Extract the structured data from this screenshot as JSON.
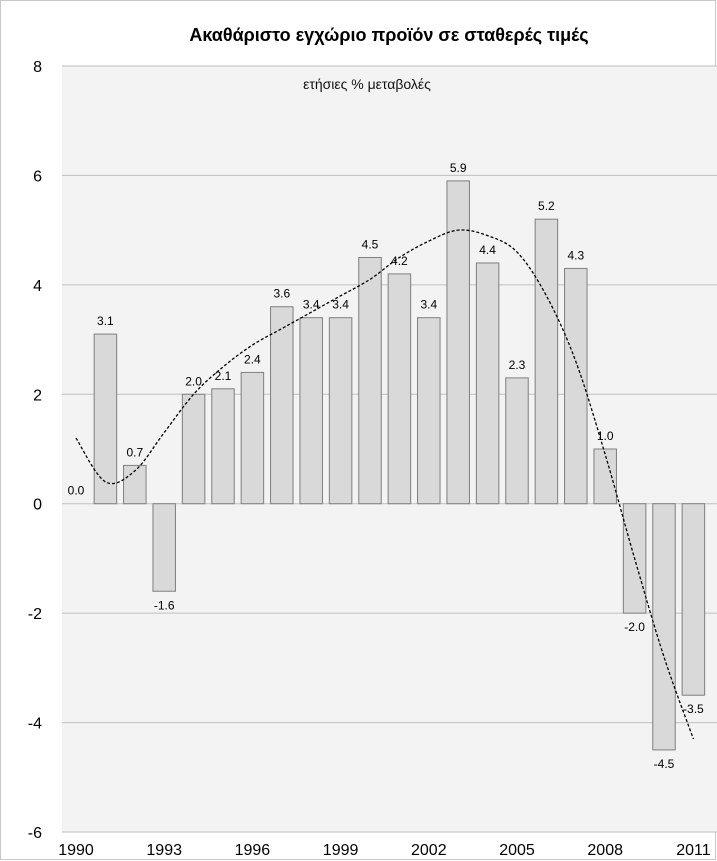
{
  "chart_data": {
    "type": "bar",
    "title": "Ακαθάριστο εγχώριο προϊόν σε σταθερές τιμές",
    "subtitle": "ετήσιες % μεταβολές",
    "x": [
      1990,
      1991,
      1992,
      1993,
      1994,
      1995,
      1996,
      1997,
      1998,
      1999,
      2000,
      2001,
      2002,
      2003,
      2004,
      2005,
      2006,
      2007,
      2008,
      2009,
      2010,
      2011
    ],
    "values": [
      0.0,
      3.1,
      0.7,
      -1.6,
      2.0,
      2.1,
      2.4,
      3.6,
      3.4,
      3.4,
      4.5,
      4.2,
      3.4,
      5.9,
      4.4,
      2.3,
      5.2,
      4.3,
      1.0,
      -2.0,
      -4.5,
      -3.5
    ],
    "data_labels": [
      "0.0",
      "3.1",
      "0.7",
      "-1.6",
      "2.0",
      "2.1",
      "2.4",
      "3.6",
      "3.4",
      "3.4",
      "4.5",
      "4.2",
      "3.4",
      "5.9",
      "4.4",
      "2.3",
      "5.2",
      "4.3",
      "1.0",
      "-2.0",
      "-4.5",
      "-3.5"
    ],
    "x_tick_labels": [
      "1990",
      "1993",
      "1996",
      "1999",
      "2002",
      "2005",
      "2008",
      "2011"
    ],
    "y_tick_labels": [
      "8",
      "6",
      "4",
      "2",
      "0",
      "-2",
      "-4",
      "-6"
    ],
    "ylim": [
      -6,
      8
    ],
    "y_ticks": [
      8,
      6,
      4,
      2,
      0,
      -2,
      -4,
      -6
    ],
    "grid": true,
    "trendline": {
      "style": "dashed",
      "type": "polynomial",
      "x": [
        1990,
        1991,
        1992,
        1993,
        1994,
        1995,
        1996,
        1997,
        1998,
        1999,
        2000,
        2001,
        2002,
        2003,
        2004,
        2005,
        2006,
        2007,
        2008,
        2009,
        2010,
        2011
      ],
      "values": [
        1.2,
        0.4,
        0.6,
        1.3,
        2.0,
        2.5,
        2.9,
        3.2,
        3.5,
        3.8,
        4.1,
        4.5,
        4.8,
        5.0,
        4.9,
        4.6,
        3.8,
        2.6,
        0.9,
        -1.0,
        -2.8,
        -4.3
      ]
    },
    "colors": {
      "bar_fill": "#d9d9d9",
      "bar_stroke": "#7f7f7f",
      "grid": "#bfbfbf",
      "trend": "#000000",
      "plot_bg": "#f3f3f3"
    }
  }
}
